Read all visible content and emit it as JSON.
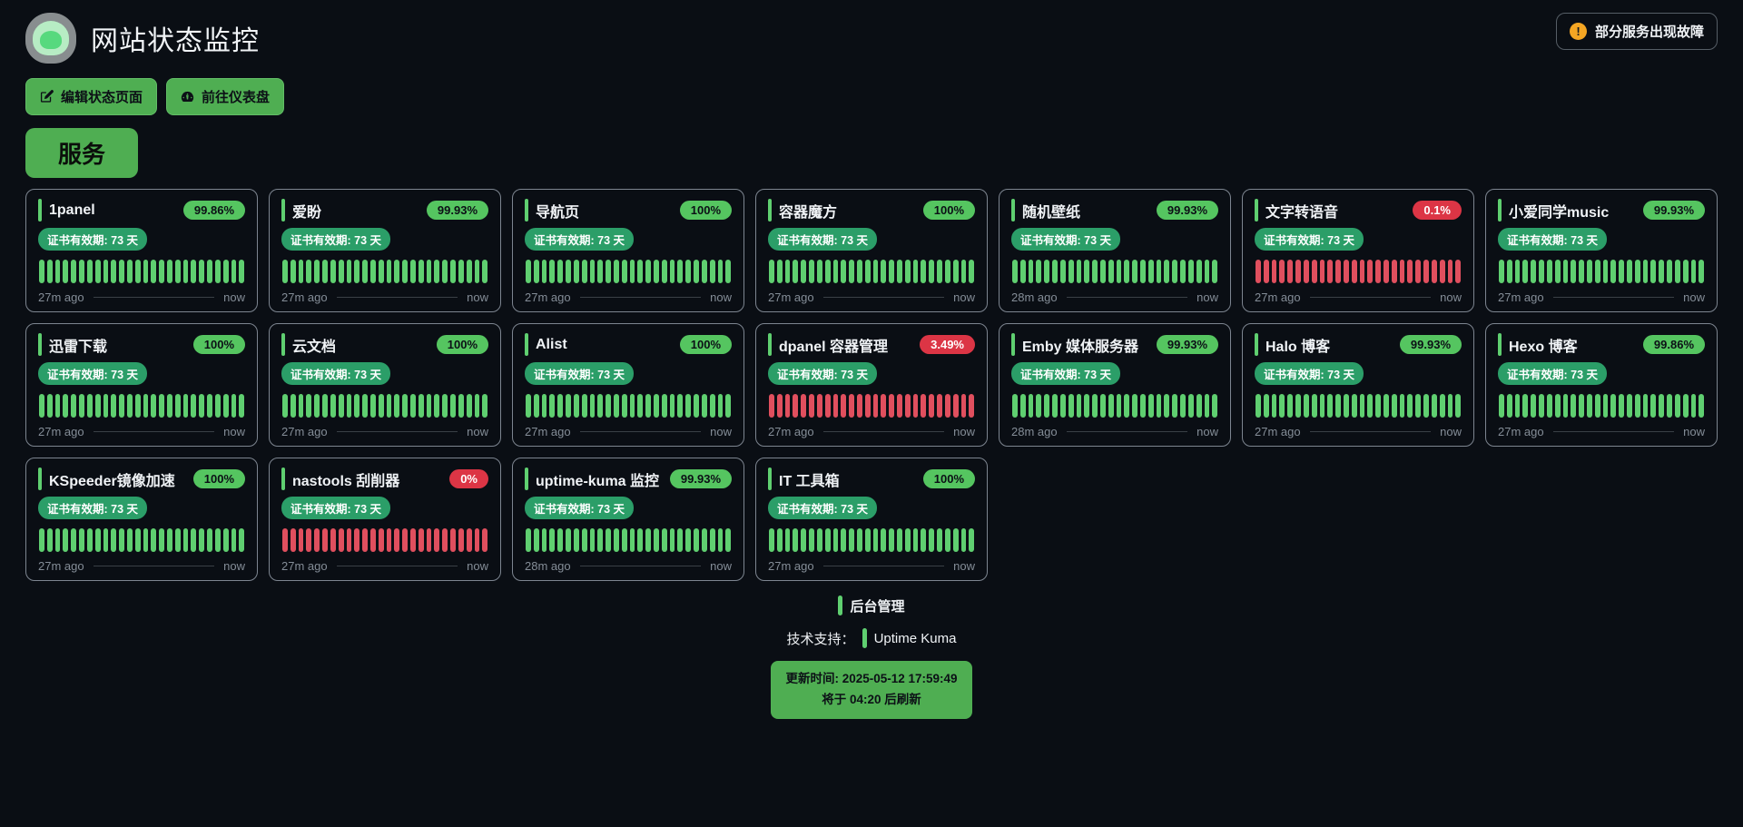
{
  "header": {
    "title": "网站状态监控",
    "alert": {
      "text": "部分服务出现故障",
      "icon": "warning-icon"
    },
    "buttons": [
      {
        "label": "编辑状态页面",
        "icon": "edit-icon"
      },
      {
        "label": "前往仪表盘",
        "icon": "dashboard-icon"
      }
    ]
  },
  "group": {
    "title": "服务"
  },
  "beats": {
    "count": 26
  },
  "services": [
    {
      "name": "1panel",
      "uptime": "99.86%",
      "status": "up",
      "cert": "证书有效期: 73 天",
      "ago": "27m ago",
      "now": "now"
    },
    {
      "name": "爱盼",
      "uptime": "99.93%",
      "status": "up",
      "cert": "证书有效期: 73 天",
      "ago": "27m ago",
      "now": "now"
    },
    {
      "name": "导航页",
      "uptime": "100%",
      "status": "up",
      "cert": "证书有效期: 73 天",
      "ago": "27m ago",
      "now": "now"
    },
    {
      "name": "容器魔方",
      "uptime": "100%",
      "status": "up",
      "cert": "证书有效期: 73 天",
      "ago": "27m ago",
      "now": "now"
    },
    {
      "name": "随机壁纸",
      "uptime": "99.93%",
      "status": "up",
      "cert": "证书有效期: 73 天",
      "ago": "28m ago",
      "now": "now"
    },
    {
      "name": "文字转语音",
      "uptime": "0.1%",
      "status": "down",
      "cert": "证书有效期: 73 天",
      "ago": "27m ago",
      "now": "now"
    },
    {
      "name": "小爱同学music",
      "uptime": "99.93%",
      "status": "up",
      "cert": "证书有效期: 73 天",
      "ago": "27m ago",
      "now": "now"
    },
    {
      "name": "迅雷下载",
      "uptime": "100%",
      "status": "up",
      "cert": "证书有效期: 73 天",
      "ago": "27m ago",
      "now": "now"
    },
    {
      "name": "云文档",
      "uptime": "100%",
      "status": "up",
      "cert": "证书有效期: 73 天",
      "ago": "27m ago",
      "now": "now"
    },
    {
      "name": "Alist",
      "uptime": "100%",
      "status": "up",
      "cert": "证书有效期: 73 天",
      "ago": "27m ago",
      "now": "now"
    },
    {
      "name": "dpanel 容器管理",
      "uptime": "3.49%",
      "status": "down",
      "cert": "证书有效期: 73 天",
      "ago": "27m ago",
      "now": "now"
    },
    {
      "name": "Emby 媒体服务器",
      "uptime": "99.93%",
      "status": "up",
      "cert": "证书有效期: 73 天",
      "ago": "28m ago",
      "now": "now"
    },
    {
      "name": "Halo 博客",
      "uptime": "99.93%",
      "status": "up",
      "cert": "证书有效期: 73 天",
      "ago": "27m ago",
      "now": "now"
    },
    {
      "name": "Hexo 博客",
      "uptime": "99.86%",
      "status": "up",
      "cert": "证书有效期: 73 天",
      "ago": "27m ago",
      "now": "now"
    },
    {
      "name": "KSpeeder镜像加速",
      "uptime": "100%",
      "status": "up",
      "cert": "证书有效期: 73 天",
      "ago": "27m ago",
      "now": "now"
    },
    {
      "name": "nastools 刮削器",
      "uptime": "0%",
      "status": "down",
      "cert": "证书有效期: 73 天",
      "ago": "27m ago",
      "now": "now"
    },
    {
      "name": "uptime-kuma 监控",
      "uptime": "99.93%",
      "status": "up",
      "cert": "证书有效期: 73 天",
      "ago": "28m ago",
      "now": "now"
    },
    {
      "name": "IT 工具箱",
      "uptime": "100%",
      "status": "up",
      "cert": "证书有效期: 73 天",
      "ago": "27m ago",
      "now": "now"
    }
  ],
  "footer": {
    "admin_link": "后台管理",
    "powered_by_label": "技术支持：",
    "powered_by": "Uptime Kuma",
    "refresh_line1": "更新时间: 2025-05-12 17:59:49",
    "refresh_line2": "将于 04:20 后刷新"
  },
  "colors": {
    "bg": "#0a0e14",
    "green": "#4fae52",
    "badge-up": "#55c560",
    "badge-down": "#dc3545",
    "beat-up": "#5fcf70",
    "beat-down": "#e04f5e",
    "cert": "#2b9e68",
    "warning": "#f5a623"
  }
}
